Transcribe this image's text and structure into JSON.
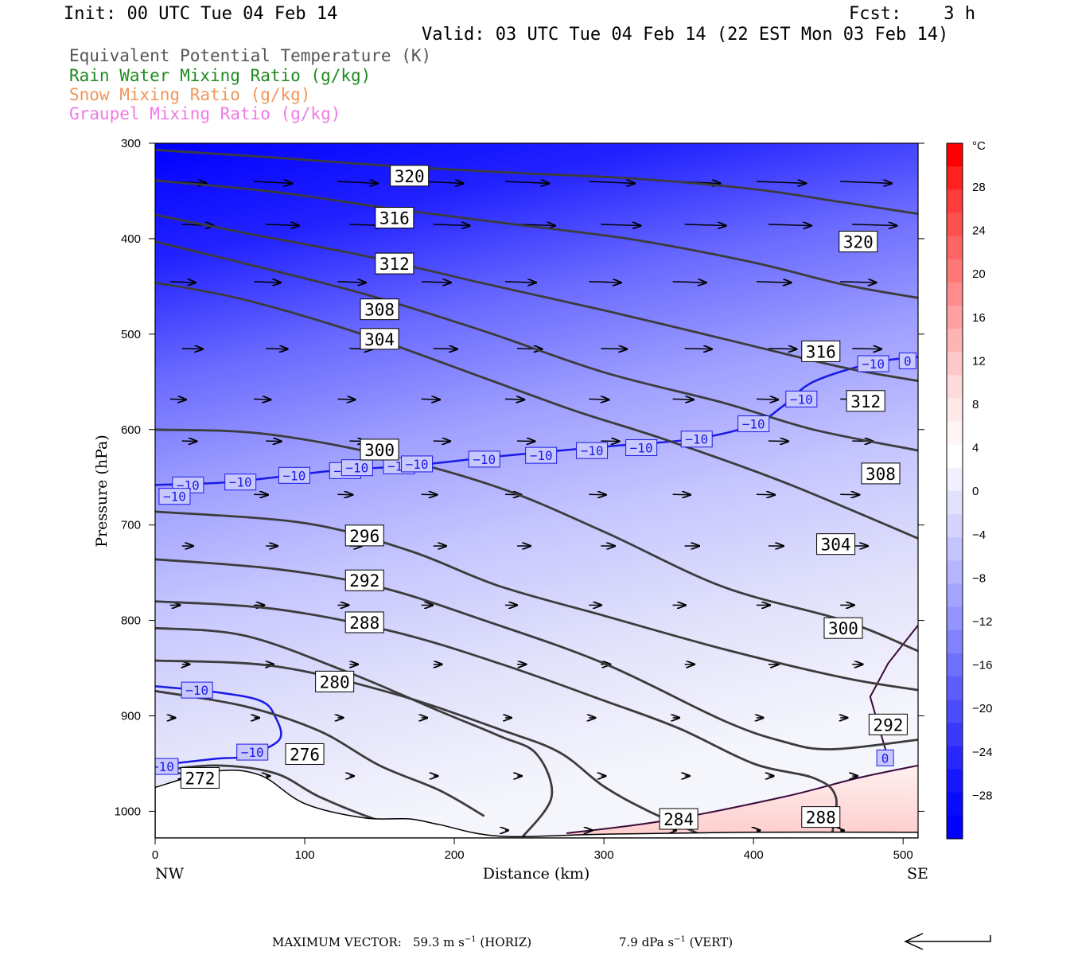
{
  "header": {
    "init": "Init: 00 UTC Tue 04 Feb 14",
    "fcst": "Fcst:    3 h",
    "valid": "Valid: 03 UTC Tue 04 Feb 14 (22 EST Mon 03 Feb 14)"
  },
  "legend": [
    {
      "label": "Equivalent Potential Temperature (K)",
      "color": "#555555"
    },
    {
      "label": "Rain Water Mixing Ratio (g/kg)",
      "color": "#1e8a1e"
    },
    {
      "label": "Snow Mixing Ratio (g/kg)",
      "color": "#f0965a"
    },
    {
      "label": "Graupel Mixing Ratio (g/kg)",
      "color": "#f07ae6"
    }
  ],
  "chart_data": {
    "type": "contour",
    "xlabel": "Distance (km)",
    "ylabel": "Pressure (hPa)",
    "xlim": [
      0,
      510
    ],
    "ylim": [
      1028,
      300
    ],
    "x_ticks": [
      "0",
      "100",
      "200",
      "300",
      "400",
      "500"
    ],
    "y_ticks": [
      "300",
      "400",
      "500",
      "600",
      "700",
      "800",
      "900",
      "1000"
    ],
    "x_end_labels": {
      "left": "NW",
      "right": "SE"
    },
    "colorbar": {
      "unit": "°C",
      "labels": [
        "28",
        "24",
        "20",
        "16",
        "12",
        "8",
        "4",
        "0",
        "−4",
        "−8",
        "−12",
        "−16",
        "−20",
        "−24",
        "−28"
      ],
      "colors": [
        "#ff0000",
        "#ff2020",
        "#ff3c3c",
        "#ff5050",
        "#ff6464",
        "#ff7878",
        "#ff8c8c",
        "#ffa0a0",
        "#ffb4b4",
        "#ffc8c8",
        "#ffdcdc",
        "#ffe8e8",
        "#fff5f5",
        "#ffffff",
        "#f0f0ff",
        "#e2e2ff",
        "#d4d4ff",
        "#c4c4ff",
        "#b4b4ff",
        "#a4a4ff",
        "#9494ff",
        "#8282ff",
        "#7070ff",
        "#5e5eff",
        "#4c4cff",
        "#3a3aff",
        "#2828ff",
        "#1616ff",
        "#0a0aff",
        "#0000ff"
      ]
    },
    "theta_e_contours": [
      {
        "value": "320",
        "points": [
          [
            0,
            307
          ],
          [
            80,
            315
          ],
          [
            160,
            324
          ],
          [
            240,
            331
          ],
          [
            320,
            337
          ],
          [
            400,
            348
          ],
          [
            460,
            362
          ],
          [
            510,
            374
          ]
        ],
        "label_at": [
          170,
          334
        ]
      },
      {
        "value": "316",
        "points": [
          [
            0,
            339
          ],
          [
            80,
            351
          ],
          [
            160,
            369
          ],
          [
            240,
            385
          ],
          [
            320,
            401
          ],
          [
            400,
            425
          ],
          [
            460,
            448
          ],
          [
            510,
            462
          ]
        ],
        "label_at": [
          160,
          378
        ]
      },
      {
        "value": "312",
        "points": [
          [
            0,
            375
          ],
          [
            60,
            394
          ],
          [
            140,
            418
          ],
          [
            220,
            447
          ],
          [
            300,
            475
          ],
          [
            380,
            505
          ],
          [
            460,
            535
          ],
          [
            510,
            549
          ]
        ],
        "label_at": [
          160,
          426
        ]
      },
      {
        "value": "308",
        "points": [
          [
            0,
            403
          ],
          [
            60,
            426
          ],
          [
            140,
            458
          ],
          [
            220,
            497
          ],
          [
            300,
            540
          ],
          [
            380,
            572
          ],
          [
            440,
            600
          ],
          [
            510,
            622
          ]
        ],
        "label_at": [
          150,
          474
        ]
      },
      {
        "value": "304",
        "points": [
          [
            0,
            446
          ],
          [
            60,
            464
          ],
          [
            140,
            501
          ],
          [
            220,
            546
          ],
          [
            280,
            580
          ],
          [
            340,
            610
          ],
          [
            420,
            655
          ],
          [
            510,
            714
          ]
        ],
        "label_at": [
          150,
          505
        ]
      },
      {
        "value": "300",
        "points": [
          [
            0,
            600
          ],
          [
            70,
            604
          ],
          [
            150,
            626
          ],
          [
            230,
            661
          ],
          [
            300,
            707
          ],
          [
            380,
            765
          ],
          [
            460,
            800
          ],
          [
            510,
            832
          ]
        ],
        "label_at": [
          150,
          621
        ]
      },
      {
        "value": "296",
        "points": [
          [
            0,
            686
          ],
          [
            100,
            698
          ],
          [
            170,
            727
          ],
          [
            230,
            764
          ],
          [
            300,
            795
          ],
          [
            380,
            830
          ],
          [
            460,
            860
          ],
          [
            510,
            873
          ]
        ],
        "label_at": [
          140,
          711
        ]
      },
      {
        "value": "292",
        "points": [
          [
            0,
            736
          ],
          [
            80,
            746
          ],
          [
            150,
            765
          ],
          [
            220,
            800
          ],
          [
            300,
            845
          ],
          [
            380,
            905
          ],
          [
            420,
            927
          ],
          [
            452,
            935
          ],
          [
            510,
            925
          ]
        ],
        "label_at": [
          140,
          758
        ]
      },
      {
        "value": "288",
        "points": [
          [
            0,
            780
          ],
          [
            80,
            788
          ],
          [
            160,
            812
          ],
          [
            230,
            845
          ],
          [
            300,
            884
          ],
          [
            350,
            913
          ],
          [
            400,
            950
          ],
          [
            440,
            965
          ],
          [
            455,
            985
          ],
          [
            452,
            1028
          ]
        ],
        "label_at": [
          140,
          802
        ]
      },
      {
        "value": "284",
        "points": [
          [
            0,
            842
          ],
          [
            80,
            848
          ],
          [
            160,
            877
          ],
          [
            230,
            914
          ],
          [
            270,
            938
          ],
          [
            300,
            974
          ],
          [
            330,
            1000
          ],
          [
            370,
            1028
          ]
        ],
        "label_at": [
          350,
          1008
        ]
      },
      {
        "value": "280",
        "points": [
          [
            0,
            808
          ],
          [
            60,
            816
          ],
          [
            130,
            855
          ],
          [
            190,
            895
          ],
          [
            230,
            921
          ],
          [
            255,
            940
          ],
          [
            265,
            985
          ],
          [
            245,
            1028
          ]
        ],
        "label_at": [
          120,
          864
        ]
      },
      {
        "value": "276",
        "points": [
          [
            0,
            874
          ],
          [
            60,
            890
          ],
          [
            110,
            916
          ],
          [
            150,
            952
          ],
          [
            190,
            978
          ],
          [
            220,
            1005
          ]
        ],
        "label_at": [
          100,
          940
        ]
      },
      {
        "value": "272",
        "points": [
          [
            0,
            958
          ],
          [
            40,
            952
          ],
          [
            80,
            960
          ],
          [
            110,
            985
          ],
          [
            150,
            1010
          ],
          [
            190,
            1028
          ]
        ],
        "label_at": [
          30,
          965
        ]
      }
    ],
    "isotherm_labels": [
      "−10",
      "−10",
      "−10",
      "−10",
      "−10",
      "−10",
      "−10",
      "−10",
      "−10",
      "−10",
      "−10",
      "−10",
      "−10",
      "−10",
      "−10",
      "−10",
      "−10",
      "−10",
      "−10",
      "0",
      "0"
    ],
    "surface": {
      "points": [
        [
          0,
          975
        ],
        [
          40,
          958
        ],
        [
          70,
          962
        ],
        [
          100,
          992
        ],
        [
          140,
          1007
        ],
        [
          170,
          1008
        ],
        [
          190,
          1014
        ],
        [
          230,
          1026
        ],
        [
          300,
          1024
        ],
        [
          400,
          1022
        ],
        [
          510,
          1022
        ]
      ]
    }
  },
  "footer": {
    "max_vector_label": "MAXIMUM VECTOR:",
    "horiz": "59.3 m s",
    "horiz_exp": "−1",
    "horiz_tag": "(HORIZ)",
    "vert": "7.9 dPa s",
    "vert_exp": "−1",
    "vert_tag": "(VERT)"
  }
}
